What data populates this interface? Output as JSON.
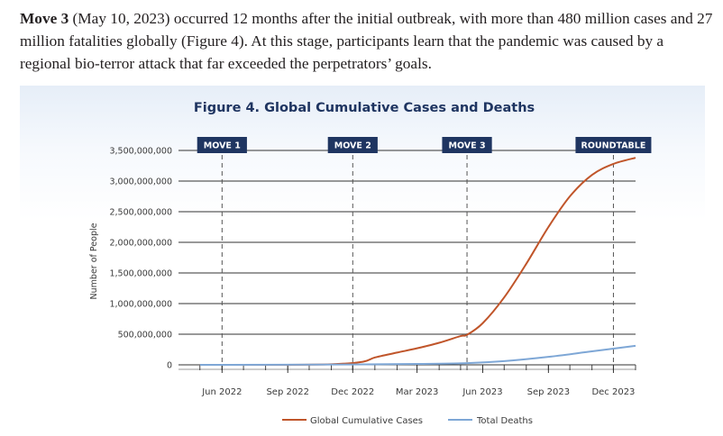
{
  "paragraph": {
    "lead": "Move 3",
    "text": " (May 10, 2023) occurred 12 months after the initial outbreak, with more than 480 million cases and 27 million fatalities globally (Figure 4). At this stage, participants learn that the pandemic was caused by a regional bio-terror attack that far exceeded the perpetrators’ goals."
  },
  "colors": {
    "cases": "#c0552a",
    "deaths": "#7ea7d6",
    "marker_bg": "#1f3561",
    "gridline": "#333333"
  },
  "chart_data": {
    "type": "line",
    "title": "Figure 4. Global Cumulative Cases and Deaths",
    "ylabel": "Number of People",
    "xlabel": "",
    "ylim": [
      0,
      3500000000
    ],
    "y_ticks": [
      0,
      500000000,
      1000000000,
      1500000000,
      2000000000,
      2500000000,
      3000000000,
      3500000000
    ],
    "y_tick_labels": [
      "0",
      "500,000,000",
      "1,000,000,000",
      "1,500,000,000",
      "2,000,000,000",
      "2,500,000,000",
      "3,000,000,000",
      "3,500,000,000"
    ],
    "x_ticks": [
      "2022-06-01",
      "2022-09-01",
      "2022-12-01",
      "2023-03-01",
      "2023-06-01",
      "2023-09-01",
      "2023-12-01"
    ],
    "x_tick_labels": [
      "Jun 2022",
      "Sep 2022",
      "Dec 2022",
      "Mar 2023",
      "Jun 2023",
      "Sep 2023",
      "Dec 2023"
    ],
    "xlim": [
      "2022-04-01",
      "2024-01-01"
    ],
    "grid": true,
    "legend": "bottom",
    "series": [
      {
        "name": "Global Cumulative Cases",
        "x": [
          "2022-05-01",
          "2022-08-01",
          "2022-11-01",
          "2022-12-15",
          "2023-01-01",
          "2023-02-01",
          "2023-03-01",
          "2023-04-01",
          "2023-05-01",
          "2023-05-10",
          "2023-06-01",
          "2023-07-01",
          "2023-08-01",
          "2023-09-01",
          "2023-10-01",
          "2023-11-01",
          "2023-12-01",
          "2024-01-01"
        ],
        "values": [
          0,
          0,
          10000000,
          50000000,
          120000000,
          200000000,
          270000000,
          360000000,
          470000000,
          490000000,
          680000000,
          1100000000,
          1650000000,
          2250000000,
          2750000000,
          3100000000,
          3280000000,
          3380000000
        ]
      },
      {
        "name": "Total Deaths",
        "x": [
          "2022-05-01",
          "2022-12-01",
          "2023-03-01",
          "2023-05-10",
          "2023-07-01",
          "2023-09-01",
          "2023-11-01",
          "2024-01-01"
        ],
        "values": [
          0,
          5000000,
          15000000,
          27000000,
          60000000,
          130000000,
          220000000,
          310000000
        ]
      }
    ],
    "markers": [
      {
        "label": "MOVE 1",
        "date": "2022-06-01"
      },
      {
        "label": "MOVE 2",
        "date": "2022-12-01"
      },
      {
        "label": "MOVE 3",
        "date": "2023-05-10"
      },
      {
        "label": "ROUNDTABLE",
        "date": "2023-12-01"
      }
    ]
  }
}
